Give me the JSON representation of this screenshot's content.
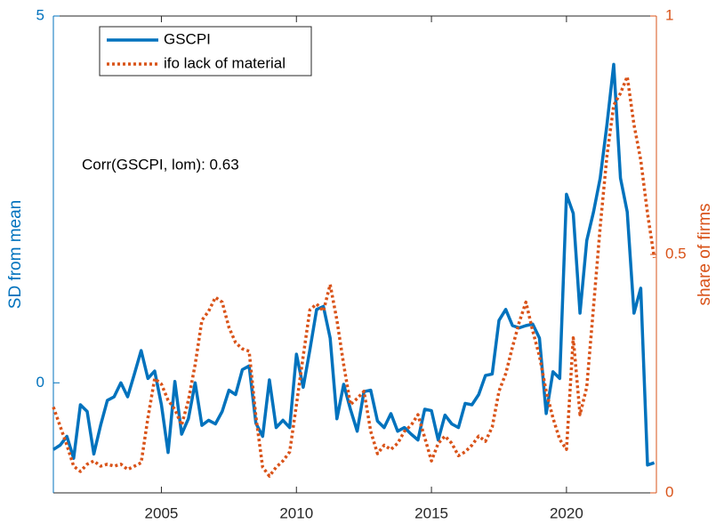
{
  "chart_data": {
    "type": "line",
    "x": [
      2001,
      2001.25,
      2001.5,
      2001.75,
      2002,
      2002.25,
      2002.5,
      2002.75,
      2003,
      2003.25,
      2003.5,
      2003.75,
      2004,
      2004.25,
      2004.5,
      2004.75,
      2005,
      2005.25,
      2005.5,
      2005.75,
      2006,
      2006.25,
      2006.5,
      2006.75,
      2007,
      2007.25,
      2007.5,
      2007.75,
      2008,
      2008.25,
      2008.5,
      2008.75,
      2009,
      2009.25,
      2009.5,
      2009.75,
      2010,
      2010.25,
      2010.5,
      2010.75,
      2011,
      2011.25,
      2011.5,
      2011.75,
      2012,
      2012.25,
      2012.5,
      2012.75,
      2013,
      2013.25,
      2013.5,
      2013.75,
      2014,
      2014.25,
      2014.5,
      2014.75,
      2015,
      2015.25,
      2015.5,
      2015.75,
      2016,
      2016.25,
      2016.5,
      2016.75,
      2017,
      2017.25,
      2017.5,
      2017.75,
      2018,
      2018.25,
      2018.5,
      2018.75,
      2019,
      2019.25,
      2019.5,
      2019.75,
      2020,
      2020.25,
      2020.5,
      2020.75,
      2021,
      2021.25,
      2021.5,
      2021.75,
      2022,
      2022.25,
      2022.5,
      2022.75,
      2023,
      2023.25
    ],
    "series": [
      {
        "name": "GSCPI",
        "color": "#0072BD",
        "values": [
          -0.91,
          -0.85,
          -0.73,
          -1.03,
          -0.3,
          -0.39,
          -0.97,
          -0.58,
          -0.24,
          -0.19,
          0,
          -0.19,
          0.12,
          0.44,
          0.06,
          0.16,
          -0.3,
          -0.95,
          0.02,
          -0.7,
          -0.49,
          0,
          -0.58,
          -0.51,
          -0.56,
          -0.39,
          -0.1,
          -0.16,
          0.18,
          0.23,
          -0.55,
          -0.73,
          0.04,
          -0.61,
          -0.51,
          -0.61,
          0.39,
          -0.06,
          0.45,
          1.0,
          1.04,
          0.61,
          -0.49,
          -0.02,
          -0.36,
          -0.66,
          -0.12,
          -0.1,
          -0.52,
          -0.61,
          -0.42,
          -0.66,
          -0.61,
          -0.7,
          -0.78,
          -0.36,
          -0.38,
          -0.78,
          -0.44,
          -0.56,
          -0.61,
          -0.28,
          -0.3,
          -0.16,
          0.1,
          0.12,
          0.85,
          1.0,
          0.78,
          0.75,
          0.78,
          0.8,
          0.61,
          -0.42,
          0.15,
          0.06,
          2.57,
          2.31,
          0.95,
          1.94,
          2.33,
          2.79,
          3.52,
          4.34,
          2.79,
          2.33,
          0.95,
          1.29,
          -1.12,
          -1.09
        ]
      },
      {
        "name": "ifo lack of material",
        "color": "#D95319",
        "axis": "y2",
        "values": [
          0.18,
          0.14,
          0.1,
          0.056,
          0.045,
          0.06,
          0.067,
          0.056,
          0.06,
          0.056,
          0.06,
          0.049,
          0.056,
          0.063,
          0.157,
          0.24,
          0.228,
          0.194,
          0.175,
          0.142,
          0.194,
          0.269,
          0.362,
          0.381,
          0.41,
          0.4,
          0.347,
          0.315,
          0.302,
          0.297,
          0.16,
          0.054,
          0.035,
          0.054,
          0.067,
          0.086,
          0.185,
          0.287,
          0.384,
          0.396,
          0.381,
          0.437,
          0.362,
          0.269,
          0.185,
          0.198,
          0.213,
          0.129,
          0.082,
          0.1,
          0.091,
          0.104,
          0.129,
          0.142,
          0.164,
          0.116,
          0.067,
          0.104,
          0.119,
          0.104,
          0.078,
          0.086,
          0.1,
          0.119,
          0.108,
          0.138,
          0.213,
          0.25,
          0.306,
          0.358,
          0.4,
          0.34,
          0.287,
          0.213,
          0.157,
          0.112,
          0.091,
          0.325,
          0.164,
          0.222,
          0.39,
          0.558,
          0.707,
          0.813,
          0.838,
          0.873,
          0.772,
          0.698,
          0.586,
          0.493
        ]
      }
    ],
    "xlim": [
      2001,
      2023.33
    ],
    "xticks": [
      2005,
      2010,
      2015,
      2020
    ],
    "ylim": [
      -1.5,
      5
    ],
    "yticks": [
      0,
      5
    ],
    "ylabel": "SD from mean",
    "y2lim": [
      0,
      1
    ],
    "y2ticks": [
      0,
      0.5,
      1
    ],
    "y2label": "share of firms",
    "annotation": "Corr(GSCPI, lom): 0.63",
    "legend": "upper-left"
  }
}
